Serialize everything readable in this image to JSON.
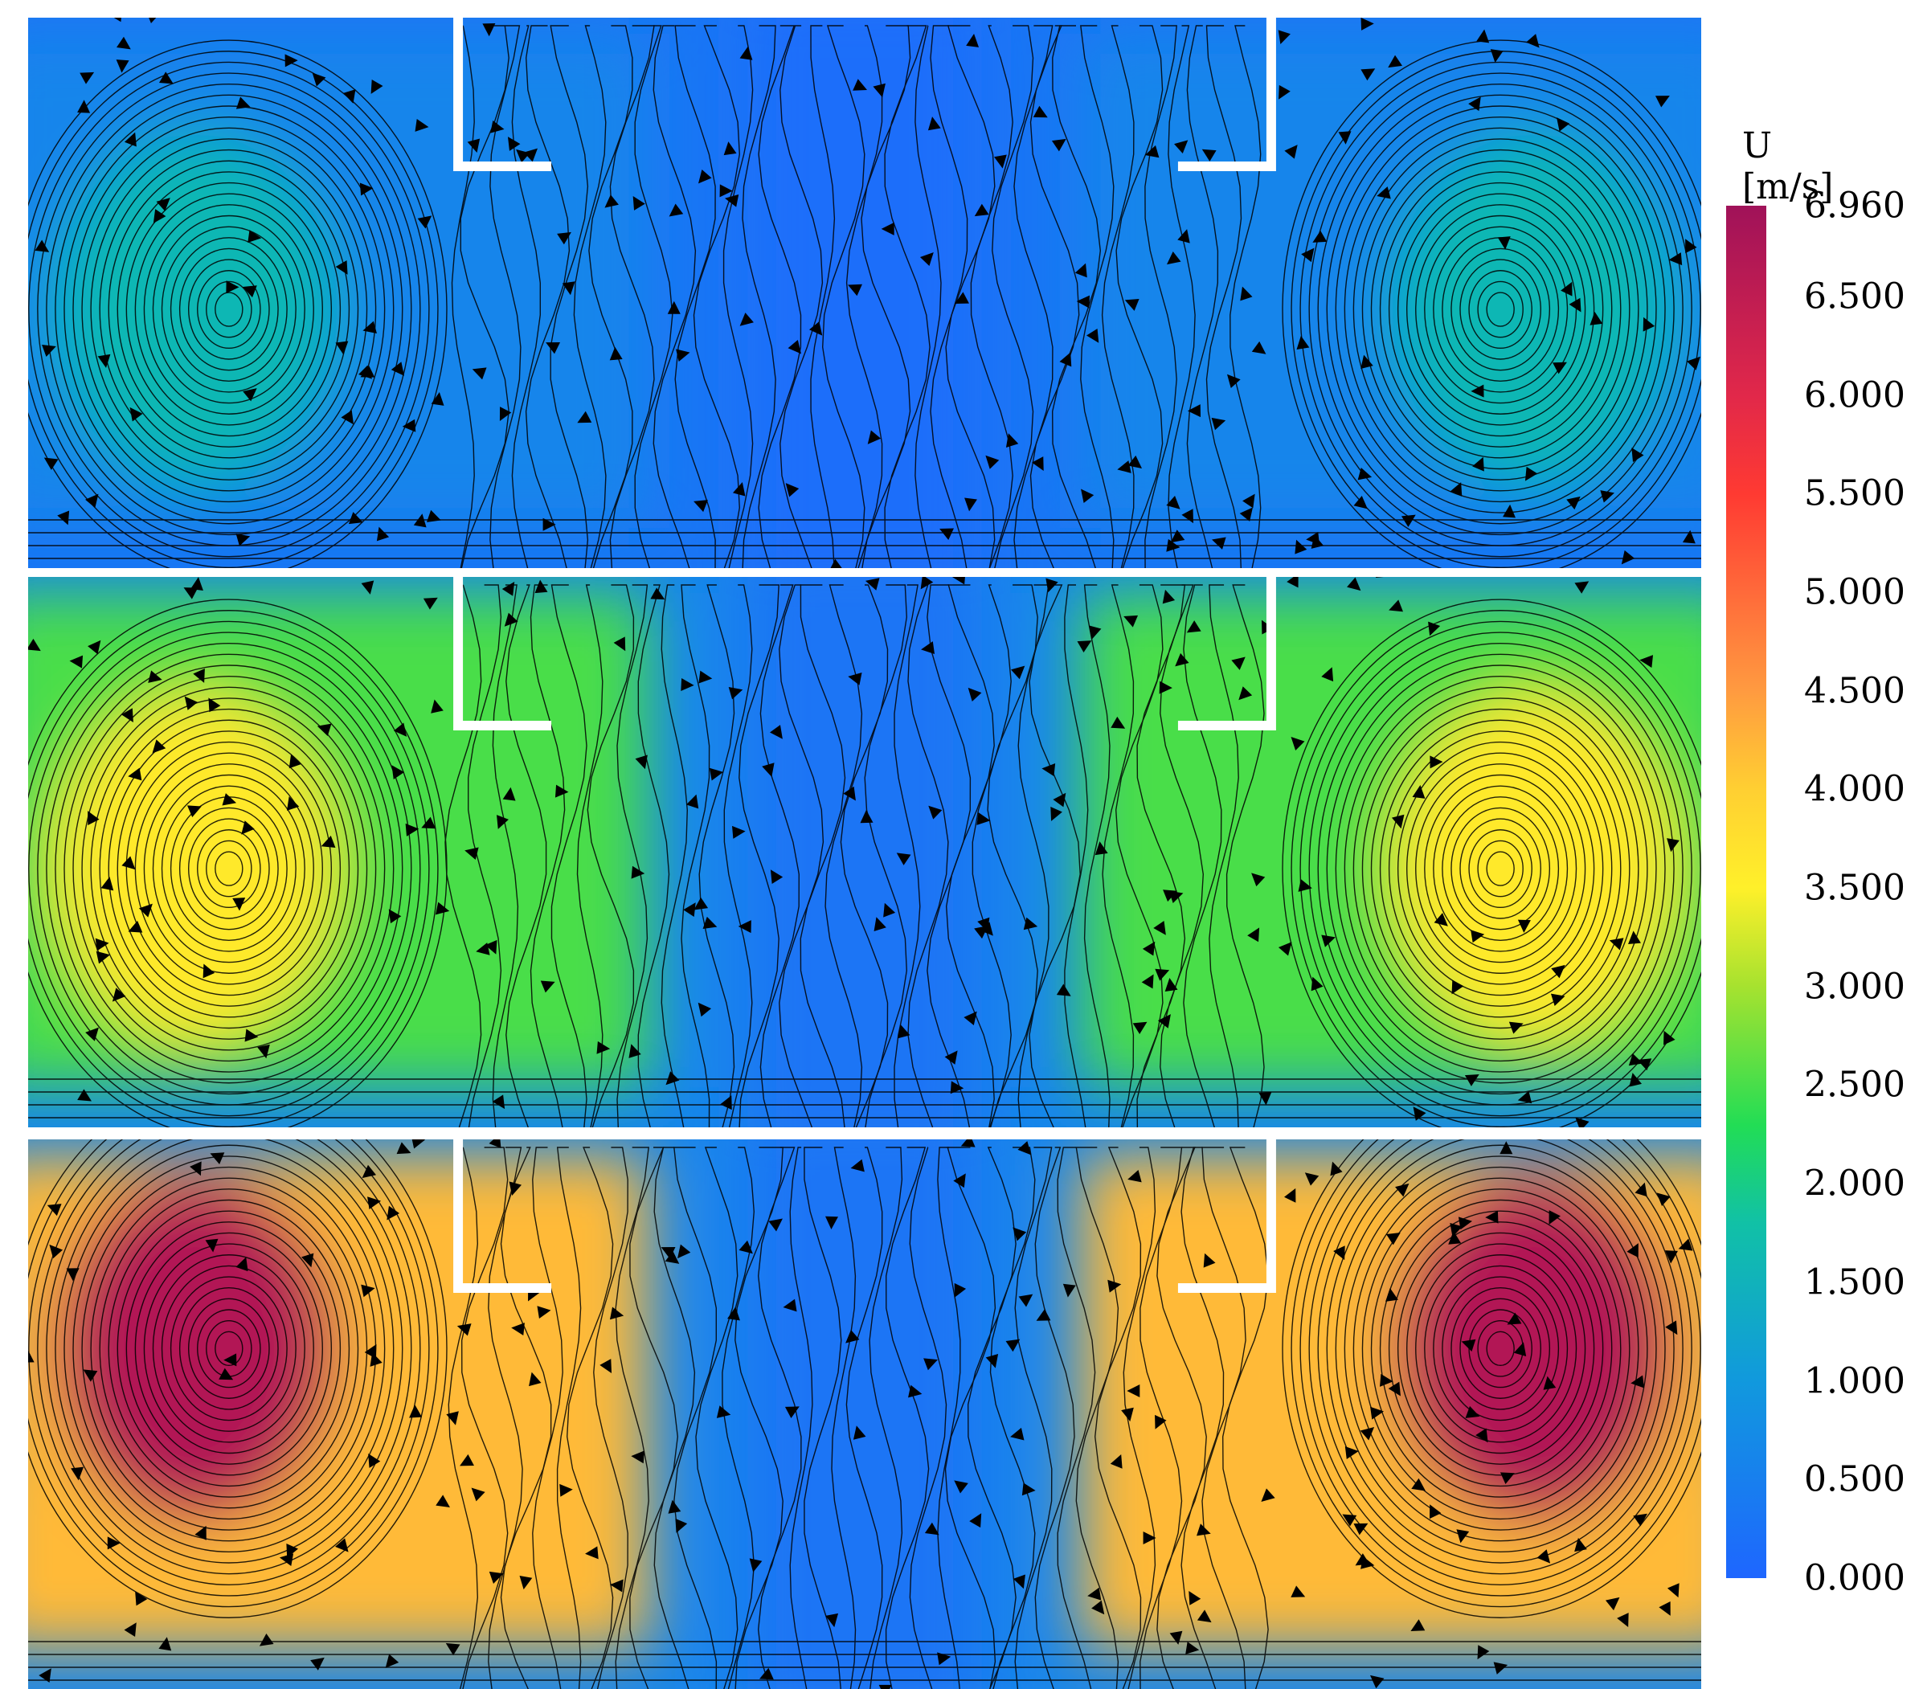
{
  "legend": {
    "title": "U [m/s]",
    "ticks": [
      "6.960",
      "6.500",
      "6.000",
      "5.500",
      "5.000",
      "4.500",
      "4.000",
      "3.500",
      "3.000",
      "2.500",
      "2.000",
      "1.500",
      "1.000",
      "0.500",
      "0.000"
    ],
    "min": 0,
    "max": 6.96
  },
  "panels": [
    {
      "vortex_speed": 1.6,
      "annulus_speed": 0.6,
      "core_speed": 0.3
    },
    {
      "vortex_speed": 3.6,
      "annulus_speed": 2.5,
      "core_speed": 0.6
    },
    {
      "vortex_speed": 6.7,
      "annulus_speed": 4.2,
      "core_speed": 0.6
    }
  ],
  "colors": {
    "background": "#ffffff",
    "wall": "#ffffff",
    "streamline": "#000000"
  }
}
